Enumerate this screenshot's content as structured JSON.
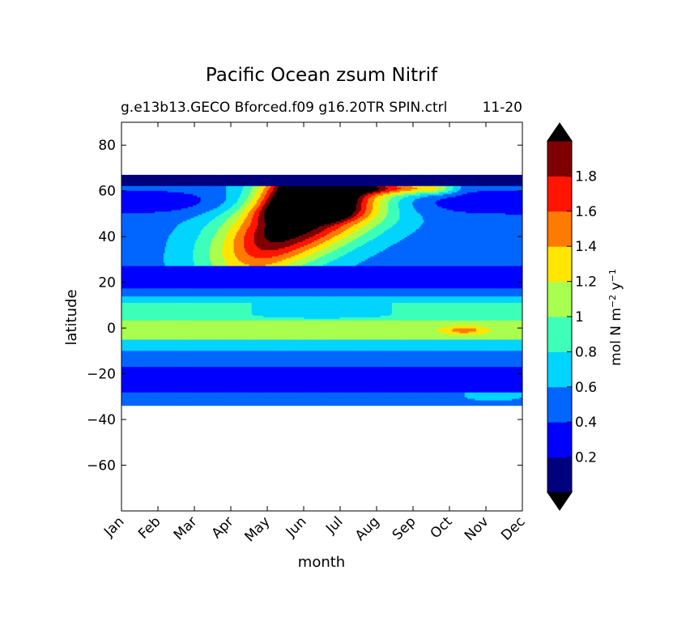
{
  "chart_data": {
    "type": "heatmap",
    "title": "Pacific Ocean zsum Nitrif",
    "subtitle_left": "g.e13b13.GECO Bforced.f09 g16.20TR SPIN.ctrl",
    "subtitle_right": "11-20",
    "xlabel": "month",
    "ylabel": "latitude",
    "x_categories": [
      "Jan",
      "Feb",
      "Mar",
      "Apr",
      "May",
      "Jun",
      "Jul",
      "Aug",
      "Sep",
      "Oct",
      "Nov",
      "Dec"
    ],
    "xlim": [
      1,
      12
    ],
    "ylim": [
      -80,
      90
    ],
    "y_ticks": [
      80,
      60,
      40,
      20,
      0,
      -20,
      -40,
      -60
    ],
    "y_tick_labels": [
      "80",
      "60",
      "40",
      "20",
      "0",
      "−20",
      "−40",
      "−60"
    ],
    "colorbar": {
      "label": "mol N m⁻² y⁻¹",
      "label_main": "mol N m",
      "label_exp1": "−2",
      "label_mid": " y",
      "label_exp2": "−1",
      "ticks": [
        0.2,
        0.4,
        0.6,
        0.8,
        1,
        1.2,
        1.4,
        1.6,
        1.8
      ],
      "tick_labels": [
        "0.2",
        "0.4",
        "0.6",
        "0.8",
        "1",
        "1.2",
        "1.4",
        "1.6",
        "1.8"
      ],
      "levels": [
        0,
        0.2,
        0.4,
        0.6,
        0.8,
        1.0,
        1.2,
        1.4,
        1.6,
        1.8,
        2.0
      ],
      "extend": "both",
      "colors": [
        "#00007f",
        "#0000ff",
        "#0066ff",
        "#00d4ff",
        "#3dffba",
        "#a8ff4f",
        "#ffe600",
        "#ff7b00",
        "#ff1500",
        "#7f0000"
      ],
      "over_color": "#000000",
      "under_color": "#000000"
    },
    "regions": [
      {
        "name": "south-boundary-band",
        "level": 0.4,
        "lat": [
          -34,
          -28
        ]
      },
      {
        "name": "southern-subtropical-low",
        "level": 0.2,
        "lat": [
          -28,
          -17
        ]
      },
      {
        "name": "southern-transition",
        "level": 0.4,
        "lat": [
          -17,
          -10
        ]
      },
      {
        "name": "south-equatorial",
        "level": 0.6,
        "lat": [
          -10,
          -5
        ]
      },
      {
        "name": "equatorial-core",
        "level": 1.0,
        "lat": [
          -5,
          3
        ]
      },
      {
        "name": "equatorial-peak-oct-nov",
        "level": 1.4,
        "lat": [
          -3,
          1
        ],
        "months": [
          9.5,
          11.3
        ]
      },
      {
        "name": "north-equatorial",
        "level": 0.8,
        "lat": [
          3,
          11
        ]
      },
      {
        "name": "north-equatorial-edge",
        "level": 0.6,
        "lat": [
          11,
          14
        ]
      },
      {
        "name": "northern-subtropical-low",
        "level": 0.2,
        "lat": [
          17,
          27
        ]
      },
      {
        "name": "north-pacific-background",
        "level": 0.4,
        "lat": [
          27,
          62
        ]
      },
      {
        "name": "north-pacific-bloom",
        "level": 1.8,
        "lat": [
          30,
          66
        ],
        "months": [
          3.7,
          10
        ]
      },
      {
        "name": "bloom-maximum",
        "level": 2.0,
        "lat": [
          44,
          66
        ],
        "months": [
          5.0,
          7.8
        ]
      },
      {
        "name": "arctic-boundary-low",
        "level": 0.0,
        "lat": [
          62,
          67
        ]
      }
    ]
  }
}
